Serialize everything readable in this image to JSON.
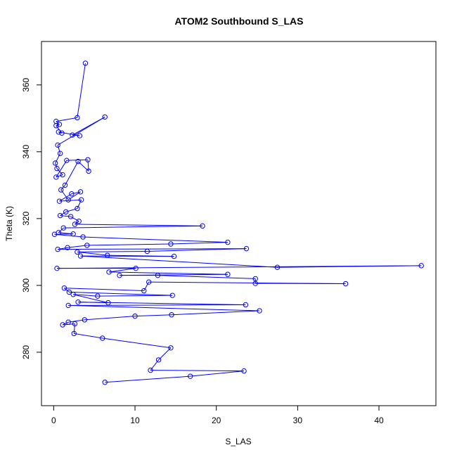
{
  "chart_data": {
    "type": "line",
    "title": "ATOM2 Southbound S_LAS",
    "xlabel": "S_LAS",
    "ylabel": "Theta (K)",
    "xlim": [
      -1.5,
      47
    ],
    "ylim": [
      264,
      373
    ],
    "xticks": [
      0,
      10,
      20,
      30,
      40
    ],
    "yticks": [
      280,
      300,
      320,
      340,
      360
    ],
    "grid": false,
    "legend": "none",
    "colors": {
      "series": "#0000ff",
      "axes": "#000000",
      "background": "#ffffff"
    },
    "series": [
      {
        "points": [
          [
            3.9,
            366.5
          ],
          [
            2.9,
            350.2
          ],
          [
            0.3,
            349.1
          ],
          [
            0.7,
            348.2
          ],
          [
            0.3,
            347.8
          ],
          [
            1.0,
            345.6
          ],
          [
            0.6,
            345.9
          ],
          [
            3.2,
            344.8
          ],
          [
            2.3,
            345.0
          ],
          [
            6.3,
            350.4
          ],
          [
            0.5,
            342.0
          ],
          [
            0.8,
            339.5
          ],
          [
            0.2,
            336.6
          ],
          [
            0.4,
            335.0
          ],
          [
            1.1,
            333.1
          ],
          [
            0.3,
            332.4
          ],
          [
            1.6,
            337.4
          ],
          [
            4.2,
            337.6
          ],
          [
            4.3,
            334.2
          ],
          [
            3.0,
            337.1
          ],
          [
            1.4,
            330.0
          ],
          [
            0.9,
            328.6
          ],
          [
            1.8,
            325.6
          ],
          [
            3.3,
            328.0
          ],
          [
            2.2,
            327.4
          ],
          [
            0.7,
            325.2
          ],
          [
            3.4,
            325.6
          ],
          [
            2.9,
            323.0
          ],
          [
            1.5,
            322.0
          ],
          [
            0.8,
            320.9
          ],
          [
            2.1,
            320.6
          ],
          [
            3.1,
            319.2
          ],
          [
            2.6,
            318.3
          ],
          [
            18.3,
            317.8
          ],
          [
            1.2,
            317.2
          ],
          [
            0.6,
            315.8
          ],
          [
            2.4,
            315.4
          ],
          [
            0.1,
            315.3
          ],
          [
            3.6,
            314.5
          ],
          [
            21.4,
            312.9
          ],
          [
            14.4,
            312.4
          ],
          [
            4.1,
            312.0
          ],
          [
            1.7,
            311.3
          ],
          [
            0.5,
            310.8
          ],
          [
            23.7,
            311.0
          ],
          [
            11.5,
            310.2
          ],
          [
            2.9,
            310.0
          ],
          [
            6.6,
            309.0
          ],
          [
            14.8,
            308.7
          ],
          [
            3.3,
            308.8
          ],
          [
            27.5,
            305.4
          ],
          [
            45.2,
            305.9
          ],
          [
            0.4,
            305.1
          ],
          [
            10.1,
            305.1
          ],
          [
            6.8,
            304.0
          ],
          [
            21.4,
            303.3
          ],
          [
            8.1,
            303.0
          ],
          [
            12.8,
            303.0
          ],
          [
            24.8,
            302.0
          ],
          [
            24.8,
            300.6
          ],
          [
            35.9,
            300.5
          ],
          [
            11.7,
            301.0
          ],
          [
            11.1,
            298.4
          ],
          [
            1.3,
            299.2
          ],
          [
            1.9,
            298.0
          ],
          [
            14.6,
            297.0
          ],
          [
            5.4,
            296.8
          ],
          [
            2.4,
            297.3
          ],
          [
            6.7,
            294.8
          ],
          [
            3.0,
            295.0
          ],
          [
            23.6,
            294.2
          ],
          [
            1.8,
            294.0
          ],
          [
            25.3,
            292.4
          ],
          [
            14.5,
            291.2
          ],
          [
            10.0,
            290.8
          ],
          [
            3.8,
            289.7
          ],
          [
            1.8,
            289.0
          ],
          [
            1.1,
            288.2
          ],
          [
            2.6,
            288.5
          ],
          [
            2.5,
            285.6
          ],
          [
            6.0,
            284.2
          ],
          [
            14.4,
            281.3
          ],
          [
            12.9,
            277.7
          ],
          [
            11.9,
            274.6
          ],
          [
            23.4,
            274.4
          ],
          [
            16.8,
            272.8
          ],
          [
            6.3,
            271.0
          ]
        ]
      }
    ]
  }
}
